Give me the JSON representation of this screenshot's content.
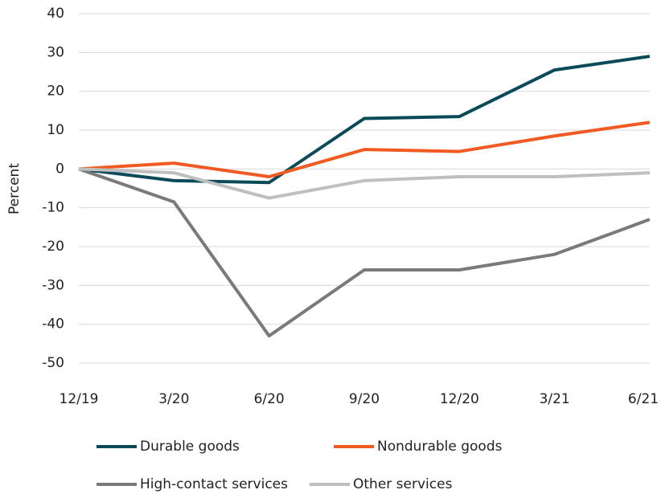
{
  "chart_data": {
    "type": "line",
    "y_label": "Percent",
    "categories": [
      "12/19",
      "3/20",
      "6/20",
      "9/20",
      "12/20",
      "3/21",
      "6/21"
    ],
    "series": [
      {
        "name": "Durable goods",
        "color": "#0b4a59",
        "values": [
          0,
          -3,
          -3.5,
          13,
          13.5,
          25.5,
          29
        ]
      },
      {
        "name": "Nondurable goods",
        "color": "#f15a22",
        "values": [
          0,
          1.5,
          -2,
          5,
          4.5,
          8.5,
          12
        ]
      },
      {
        "name": "High-contact services",
        "color": "#7a7a7a",
        "values": [
          0,
          -8.5,
          -43,
          -26,
          -26,
          -22,
          -13
        ]
      },
      {
        "name": "Other services",
        "color": "#bfbfbf",
        "values": [
          0,
          -1,
          -7.5,
          -3,
          -2,
          -2,
          -1
        ]
      }
    ],
    "ylim": [
      -50,
      40
    ],
    "yticks": [
      -50,
      -40,
      -30,
      -20,
      -10,
      0,
      10,
      20,
      30,
      40
    ],
    "grid": true
  }
}
